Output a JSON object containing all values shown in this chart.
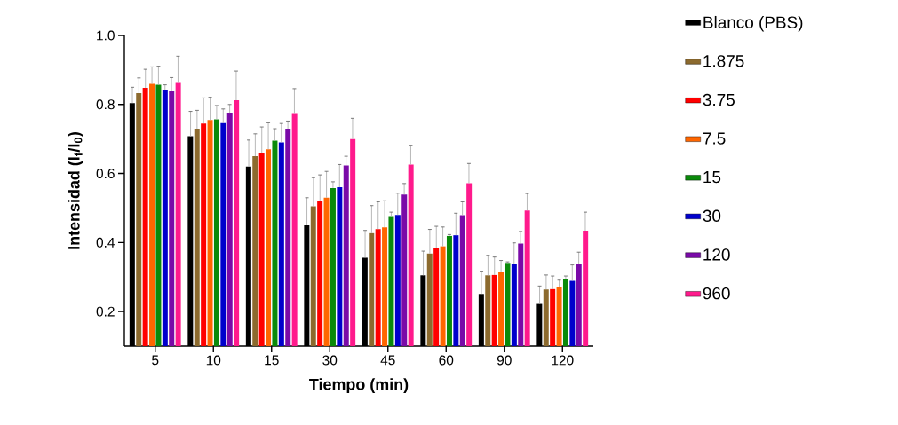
{
  "chart_data": {
    "type": "bar",
    "xlabel": "Tiempo (min)",
    "ylabel": "**Intensidad (I$_{f}$/I$_{0}$)**",
    "categories": [
      "5",
      "10",
      "15",
      "30",
      "45",
      "60",
      "90",
      "120"
    ],
    "ylim": [
      0.1,
      1.0
    ],
    "yticks": [
      0.2,
      0.4,
      0.6,
      0.8,
      {
        "value": 1.0,
        "label": "1.0"
      }
    ],
    "legend": "right",
    "series": [
      {
        "name": "Blanco (PBS)",
        "color": "#000000",
        "values": [
          0.804,
          0.708,
          0.62,
          0.45,
          0.356,
          0.305,
          0.251,
          0.222
        ],
        "errors": [
          [
            0.804,
            0.85
          ],
          [
            0.708,
            0.78
          ],
          [
            0.62,
            0.697
          ],
          [
            0.45,
            0.53
          ],
          [
            0.356,
            0.435
          ],
          [
            0.305,
            0.375
          ],
          [
            0.251,
            0.317
          ],
          [
            0.222,
            0.274
          ]
        ]
      },
      {
        "name": "1.875",
        "color": "#8c6a2e",
        "values": [
          0.833,
          0.73,
          0.65,
          0.505,
          0.427,
          0.368,
          0.305,
          0.264
        ],
        "errors": [
          [
            0.833,
            0.877
          ],
          [
            0.73,
            0.783
          ],
          [
            0.65,
            0.715
          ],
          [
            0.505,
            0.588
          ],
          [
            0.427,
            0.507
          ],
          [
            0.368,
            0.438
          ],
          [
            0.305,
            0.363
          ],
          [
            0.264,
            0.306
          ]
        ]
      },
      {
        "name": "3.75",
        "color": "#ff0000",
        "values": [
          0.848,
          0.745,
          0.66,
          0.52,
          0.439,
          0.384,
          0.306,
          0.265
        ],
        "errors": [
          [
            0.848,
            0.902
          ],
          [
            0.745,
            0.819
          ],
          [
            0.66,
            0.735
          ],
          [
            0.52,
            0.596
          ],
          [
            0.439,
            0.518
          ],
          [
            0.384,
            0.447
          ],
          [
            0.306,
            0.358
          ],
          [
            0.265,
            0.303
          ]
        ]
      },
      {
        "name": "7.5",
        "color": "#ff6600",
        "values": [
          0.86,
          0.755,
          0.67,
          0.53,
          0.444,
          0.389,
          0.315,
          0.272
        ],
        "errors": [
          [
            0.86,
            0.909
          ],
          [
            0.755,
            0.821
          ],
          [
            0.67,
            0.747
          ],
          [
            0.53,
            0.606
          ],
          [
            0.444,
            0.521
          ],
          [
            0.389,
            0.445
          ],
          [
            0.315,
            0.348
          ],
          [
            0.272,
            0.291
          ]
        ]
      },
      {
        "name": "15",
        "color": "#0a8a0a",
        "values": [
          0.857,
          0.757,
          0.695,
          0.558,
          0.474,
          0.419,
          0.341,
          0.293
        ],
        "errors": [
          [
            0.857,
            0.911
          ],
          [
            0.757,
            0.797
          ],
          [
            0.695,
            0.73
          ],
          [
            0.558,
            0.576
          ],
          [
            0.474,
            0.488
          ],
          [
            0.419,
            0.423
          ],
          [
            0.341,
            0.344
          ],
          [
            0.293,
            0.303
          ]
        ]
      },
      {
        "name": "30",
        "color": "#0000cc",
        "values": [
          0.843,
          0.746,
          0.69,
          0.56,
          0.48,
          0.421,
          0.339,
          0.289
        ],
        "errors": [
          [
            0.843,
            0.857
          ],
          [
            0.746,
            0.787
          ],
          [
            0.69,
            0.745
          ],
          [
            0.56,
            0.626
          ],
          [
            0.48,
            0.543
          ],
          [
            0.421,
            0.485
          ],
          [
            0.339,
            0.399
          ],
          [
            0.289,
            0.335
          ]
        ]
      },
      {
        "name": "120",
        "color": "#7a0aa8",
        "values": [
          0.839,
          0.776,
          0.73,
          0.623,
          0.539,
          0.479,
          0.397,
          0.337
        ],
        "errors": [
          [
            0.839,
            0.878
          ],
          [
            0.776,
            0.8
          ],
          [
            0.73,
            0.752
          ],
          [
            0.623,
            0.65
          ],
          [
            0.539,
            0.571
          ],
          [
            0.479,
            0.518
          ],
          [
            0.397,
            0.432
          ],
          [
            0.337,
            0.372
          ]
        ]
      },
      {
        "name": "960",
        "color": "#ff1a8c",
        "values": [
          0.865,
          0.812,
          0.775,
          0.7,
          0.626,
          0.572,
          0.493,
          0.434
        ],
        "errors": [
          [
            0.865,
            0.94
          ],
          [
            0.812,
            0.897
          ],
          [
            0.775,
            0.846
          ],
          [
            0.7,
            0.76
          ],
          [
            0.626,
            0.682
          ],
          [
            0.572,
            0.629
          ],
          [
            0.493,
            0.542
          ],
          [
            0.434,
            0.488
          ]
        ]
      }
    ]
  }
}
